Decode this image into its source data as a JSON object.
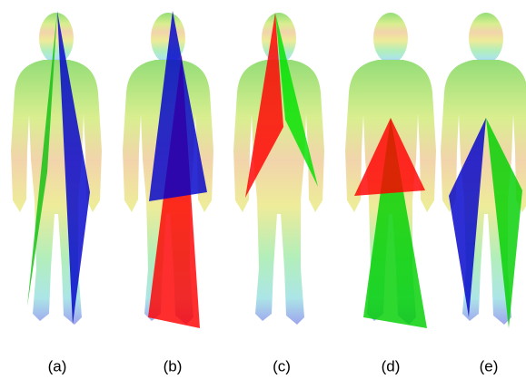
{
  "figure": {
    "captions": [
      "(a)",
      "(b)",
      "(c)",
      "(d)",
      "(e)"
    ]
  }
}
